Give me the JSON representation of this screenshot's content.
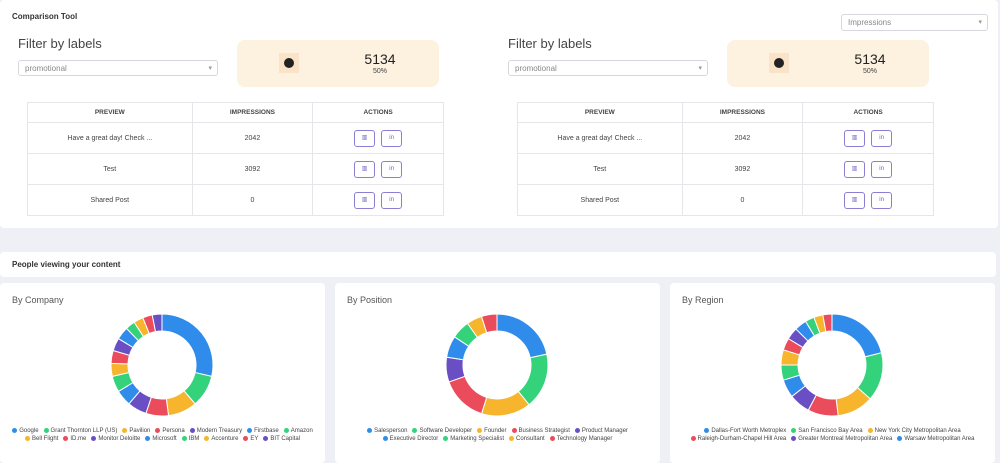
{
  "comparison": {
    "title": "Comparison Tool",
    "metric_select": "Impressions",
    "panels": [
      {
        "filter_title": "Filter by labels",
        "filter_select": "promotional",
        "total": 5134,
        "share": "50%",
        "table": {
          "headers": [
            "PREVIEW",
            "IMPRESSIONS",
            "ACTIONS"
          ],
          "rows": [
            [
              "Have a great day! Check ...",
              2042
            ],
            [
              "Test",
              3092
            ],
            [
              "Shared Post",
              0
            ]
          ]
        }
      },
      {
        "filter_title": "Filter by labels",
        "filter_select": "promotional",
        "total": 5134,
        "share": "50%",
        "table": {
          "headers": [
            "PREVIEW",
            "IMPRESSIONS",
            "ACTIONS"
          ],
          "rows": [
            [
              "Have a great day! Check ...",
              2042
            ],
            [
              "Test",
              3092
            ],
            [
              "Shared Post",
              0
            ]
          ]
        }
      }
    ]
  },
  "audience": {
    "title": "People viewing your content",
    "charts": [
      {
        "type": "donut",
        "title": "By Company",
        "categories": [
          "Google",
          "Grant Thornton LLP (US)",
          "Pavilion",
          "Persona",
          "Modern Treasury",
          "Firstbase",
          "Amazon",
          "Bell Flight",
          "ID.me",
          "Monitor Deloitte",
          "Microsoft",
          "IBM",
          "Accenture",
          "EY",
          "BIT Capital"
        ],
        "values": [
          28,
          10,
          9,
          7,
          6,
          5,
          5,
          4,
          4,
          4,
          4,
          3,
          3,
          3,
          3
        ],
        "colors": [
          "#2f8cea",
          "#34d27b",
          "#f6b52c",
          "#ea4c5c",
          "#6a4fc4",
          "#2f8cea",
          "#34d27b",
          "#f6b52c",
          "#ea4c5c",
          "#6a4fc4",
          "#2f8cea",
          "#34d27b",
          "#f6b52c",
          "#ea4c5c",
          "#6a4fc4"
        ]
      },
      {
        "type": "donut",
        "title": "By Position",
        "categories": [
          "Salesperson",
          "Software Developer",
          "Founder",
          "Business Strategist",
          "Product Manager",
          "Executive Director",
          "Marketing Specialist",
          "Consultant",
          "Technology Manager"
        ],
        "values": [
          22,
          18,
          16,
          15,
          8,
          7,
          6,
          5,
          5
        ],
        "colors": [
          "#2f8cea",
          "#34d27b",
          "#f6b52c",
          "#ea4c5c",
          "#6a4fc4",
          "#2f8cea",
          "#34d27b",
          "#f6b52c",
          "#ea4c5c"
        ]
      },
      {
        "type": "donut",
        "title": "By Region",
        "categories": [
          "Dallas-Fort Worth Metroplex",
          "San Francisco Bay Area",
          "New York City Metropolitan Area",
          "Raleigh-Durham-Chapel Hill Area",
          "Greater Montreal Metropolitan Area",
          "Warsaw Metropolitan Area",
          null,
          null,
          null,
          null,
          null,
          null,
          null,
          null
        ],
        "values": [
          22,
          16,
          12,
          10,
          7,
          6,
          5,
          5,
          4,
          4,
          4,
          3,
          3,
          3
        ],
        "colors": [
          "#2f8cea",
          "#34d27b",
          "#f6b52c",
          "#ea4c5c",
          "#6a4fc4",
          "#2f8cea",
          "#34d27b",
          "#f6b52c",
          "#ea4c5c",
          "#6a4fc4",
          "#2f8cea",
          "#34d27b",
          "#f6b52c",
          "#ea4c5c"
        ]
      }
    ]
  }
}
